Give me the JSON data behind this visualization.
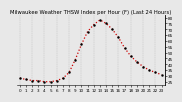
{
  "title": "Milwaukee Weather THSW Index per Hour (F) (Last 24 Hours)",
  "hours": [
    0,
    1,
    2,
    3,
    4,
    5,
    6,
    7,
    8,
    9,
    10,
    11,
    12,
    13,
    14,
    15,
    16,
    17,
    18,
    19,
    20,
    21,
    22,
    23
  ],
  "values": [
    28,
    27,
    26,
    26,
    25,
    25,
    26,
    28,
    33,
    44,
    57,
    68,
    74,
    78,
    75,
    70,
    63,
    54,
    47,
    42,
    38,
    35,
    33,
    31
  ],
  "line_color": "#cc0000",
  "marker_color": "#000000",
  "bg_color": "#e8e8e8",
  "plot_bg_color": "#e8e8e8",
  "grid_color": "#bbbbbb",
  "ylim": [
    22,
    82
  ],
  "ytick_values": [
    25,
    30,
    35,
    40,
    45,
    50,
    55,
    60,
    65,
    70,
    75,
    80
  ],
  "title_fontsize": 3.8,
  "tick_fontsize": 3.0,
  "linewidth": 0.9,
  "markersize": 1.5
}
